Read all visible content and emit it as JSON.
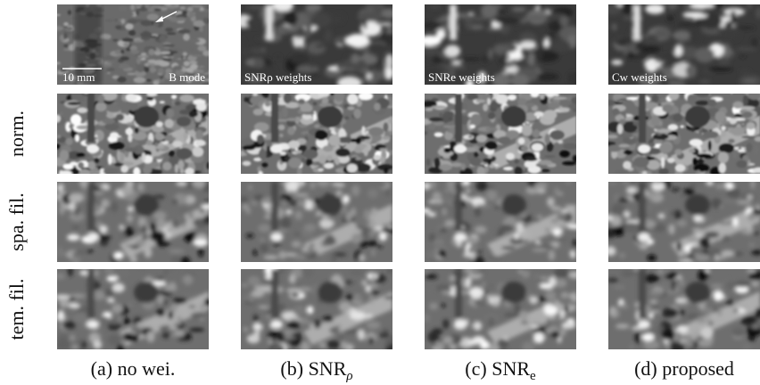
{
  "figure": {
    "scale_bar": "10 mm",
    "row_labels": [
      "norm.",
      "spa. fil.",
      "tem. fil."
    ],
    "columns": [
      {
        "overlay": "B mode",
        "caption": {
          "text": "(a) no wei."
        }
      },
      {
        "overlay": "SNRρ weights",
        "caption": {
          "text": "(b) SNR",
          "sub": "ρ"
        }
      },
      {
        "overlay": "SNRe weights",
        "caption": {
          "text": "(c) SNR",
          "sub": "e"
        }
      },
      {
        "overlay": "Cw weights",
        "caption": {
          "text": "(d) proposed"
        }
      }
    ]
  }
}
